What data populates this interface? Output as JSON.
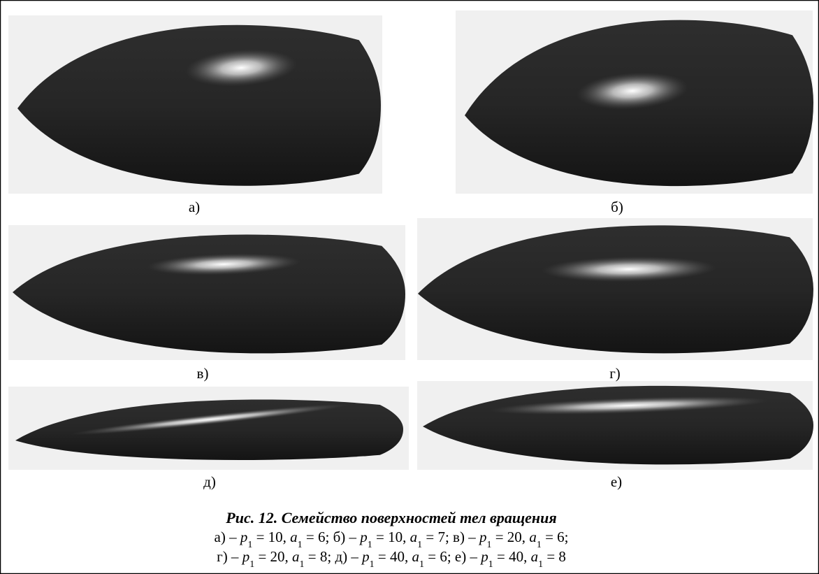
{
  "figure": {
    "panels": [
      "а)",
      "б)",
      "в)",
      "г)",
      "д)",
      "е)"
    ],
    "caption": {
      "title": "Рис. 12. Семейство поверхностей тел вращения",
      "lines": [
        [
          {
            "text": "а) – ",
            "style": "normal"
          },
          {
            "text": "p",
            "style": "italic"
          },
          {
            "text": "1",
            "style": "sub"
          },
          {
            "text": " = 10, ",
            "style": "normal"
          },
          {
            "text": "a",
            "style": "italic"
          },
          {
            "text": "1",
            "style": "sub"
          },
          {
            "text": " = 6; б) – ",
            "style": "normal"
          },
          {
            "text": "p",
            "style": "italic"
          },
          {
            "text": "1",
            "style": "sub"
          },
          {
            "text": " = 10, ",
            "style": "normal"
          },
          {
            "text": "a",
            "style": "italic"
          },
          {
            "text": "1",
            "style": "sub"
          },
          {
            "text": " = 7; в) – ",
            "style": "normal"
          },
          {
            "text": "p",
            "style": "italic"
          },
          {
            "text": "1",
            "style": "sub"
          },
          {
            "text": " = 20, ",
            "style": "normal"
          },
          {
            "text": "a",
            "style": "italic"
          },
          {
            "text": "1",
            "style": "sub"
          },
          {
            "text": " = 6;",
            "style": "normal"
          }
        ],
        [
          {
            "text": "г) – ",
            "style": "normal"
          },
          {
            "text": "p",
            "style": "italic"
          },
          {
            "text": "1",
            "style": "sub"
          },
          {
            "text": " = 20, ",
            "style": "normal"
          },
          {
            "text": "a",
            "style": "italic"
          },
          {
            "text": "1",
            "style": "sub"
          },
          {
            "text": " = 8; д) – ",
            "style": "normal"
          },
          {
            "text": "p",
            "style": "italic"
          },
          {
            "text": "1",
            "style": "sub"
          },
          {
            "text": " = 40, ",
            "style": "normal"
          },
          {
            "text": "a",
            "style": "italic"
          },
          {
            "text": "1",
            "style": "sub"
          },
          {
            "text": " = 6; е) – ",
            "style": "normal"
          },
          {
            "text": "p",
            "style": "italic"
          },
          {
            "text": "1",
            "style": "sub"
          },
          {
            "text": " = 40, ",
            "style": "normal"
          },
          {
            "text": "a",
            "style": "italic"
          },
          {
            "text": "1",
            "style": "sub"
          },
          {
            "text": " = 8",
            "style": "normal"
          }
        ]
      ]
    }
  }
}
